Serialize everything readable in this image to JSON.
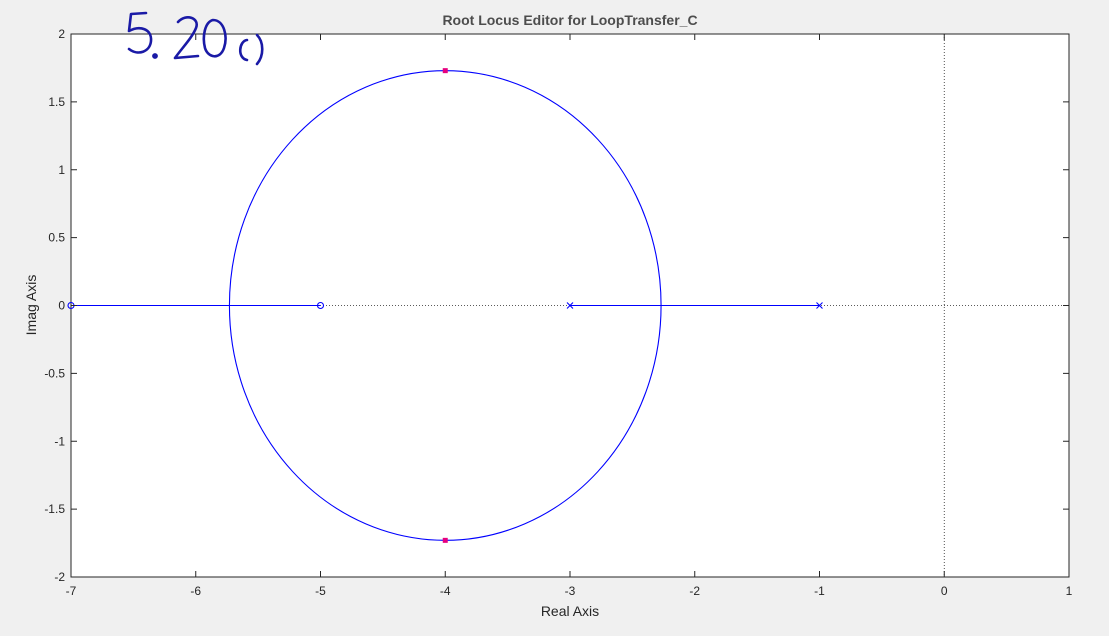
{
  "annotation": "5.20 c)",
  "chart_data": {
    "type": "line",
    "title": "Root Locus Editor for LoopTransfer_C",
    "xlabel": "Real Axis",
    "ylabel": "Imag Axis",
    "xlim": [
      -7,
      1
    ],
    "ylim": [
      -2,
      2
    ],
    "xticks": [
      -7,
      -6,
      -5,
      -4,
      -3,
      -2,
      -1,
      0,
      1
    ],
    "yticks": [
      -2,
      -1.5,
      -1,
      -0.5,
      0,
      0.5,
      1,
      1.5,
      2
    ],
    "xtick_labels": [
      "-7",
      "-6",
      "-5",
      "-4",
      "-3",
      "-2",
      "-1",
      "0",
      "1"
    ],
    "ytick_labels": [
      "-2",
      "-1.5",
      "-1",
      "-0.5",
      "0",
      "0.5",
      "1",
      "1.5",
      "2"
    ],
    "grid": false,
    "series": [
      {
        "kind": "real-axis-segment",
        "x": [
          -3,
          -1
        ],
        "y": [
          0,
          0
        ]
      },
      {
        "kind": "real-axis-segment",
        "x": [
          -7,
          -5.73
        ],
        "y": [
          0,
          0
        ]
      },
      {
        "kind": "real-axis-segment",
        "x": [
          -5.73,
          -5
        ],
        "y": [
          0,
          0
        ]
      },
      {
        "kind": "circle",
        "center": [
          -4,
          0
        ],
        "radius": 1.73
      }
    ],
    "poles": [
      {
        "x": -3,
        "y": 0
      },
      {
        "x": -1,
        "y": 0
      }
    ],
    "zeros": [
      {
        "x": -5,
        "y": 0
      },
      {
        "x": -7,
        "y": 0
      }
    ],
    "closed_loop_poles": [
      {
        "x": -4,
        "y": 1.73
      },
      {
        "x": -4,
        "y": -1.73
      }
    ],
    "reference_lines": [
      {
        "axis": "x",
        "value": 0,
        "style": "dotted"
      },
      {
        "axis": "y",
        "value": 0,
        "style": "dotted"
      }
    ],
    "colors": {
      "locus": "#0000ff",
      "marker": "#0000ff",
      "closed_loop_pole": "#e6007e",
      "annotation": "#1a1aa6",
      "plot_background": "#ffffff",
      "figure_background": "#f0f0f0"
    }
  }
}
